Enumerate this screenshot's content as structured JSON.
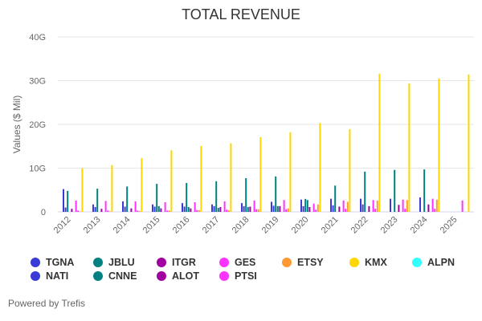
{
  "chart_data": {
    "type": "bar",
    "title": "TOTAL REVENUE",
    "ylabel": "Values ($ Mil)",
    "xlabel": "",
    "ylim": [
      0,
      40000
    ],
    "yticks": [
      "0",
      "10G",
      "20G",
      "30G",
      "40G"
    ],
    "grid": true,
    "legend_placement": "bottom",
    "categories": [
      "2012",
      "2013",
      "2014",
      "2015",
      "2016",
      "2017",
      "2018",
      "2019",
      "2020",
      "2021",
      "2022",
      "2023",
      "2024",
      "2025"
    ],
    "series": [
      {
        "name": "TGNA",
        "color": "#3a3ad6",
        "values": [
          5200,
          1700,
          2400,
          1700,
          2000,
          1700,
          2000,
          2300,
          2800,
          3000,
          3000,
          3000,
          3300,
          null
        ]
      },
      {
        "name": "NATI",
        "color": "#3a3ad6",
        "values": [
          1000,
          1100,
          1200,
          1200,
          1200,
          1300,
          1300,
          1400,
          1300,
          1500,
          1700,
          null,
          null,
          null
        ]
      },
      {
        "name": "JBLU",
        "color": "#008080",
        "values": [
          4800,
          5300,
          5800,
          6400,
          6600,
          7000,
          7700,
          8100,
          2960,
          6000,
          9200,
          9600,
          9700,
          null
        ]
      },
      {
        "name": "CNNE",
        "color": "#008080",
        "values": [
          null,
          null,
          null,
          1300,
          1100,
          900,
          1100,
          1300,
          2700,
          null,
          null,
          null,
          null,
          null
        ]
      },
      {
        "name": "ITGR",
        "color": "#a000a0",
        "values": [
          700,
          700,
          800,
          800,
          800,
          1100,
          1200,
          1300,
          1100,
          1200,
          1300,
          1600,
          1700,
          null
        ]
      },
      {
        "name": "ALOT",
        "color": "#a000a0",
        "values": [
          null,
          null,
          null,
          null,
          null,
          null,
          null,
          null,
          null,
          null,
          null,
          null,
          null,
          null
        ]
      },
      {
        "name": "GES",
        "color": "#ff33ff",
        "values": [
          2600,
          2500,
          2400,
          2200,
          2200,
          2400,
          2600,
          2700,
          1900,
          2600,
          2700,
          2800,
          3000,
          2600
        ]
      },
      {
        "name": "PTSI",
        "color": "#ff33ff",
        "values": [
          300,
          300,
          300,
          300,
          400,
          500,
          600,
          600,
          500,
          700,
          700,
          700,
          700,
          null
        ]
      },
      {
        "name": "ETSY",
        "color": "#ff9933",
        "values": [
          100,
          100,
          200,
          300,
          400,
          400,
          600,
          800,
          1700,
          2300,
          2600,
          2700,
          2800,
          null
        ]
      },
      {
        "name": "KMX",
        "color": "#ffd700",
        "values": [
          10000,
          10700,
          12300,
          14100,
          15100,
          15700,
          17100,
          18200,
          20300,
          18900,
          31600,
          29400,
          30500,
          31400
        ]
      },
      {
        "name": "ALPN",
        "color": "#33ffff",
        "values": [
          null,
          null,
          null,
          null,
          null,
          null,
          null,
          null,
          null,
          null,
          null,
          null,
          null,
          null
        ]
      }
    ]
  },
  "credit": "Powered by Trefis"
}
